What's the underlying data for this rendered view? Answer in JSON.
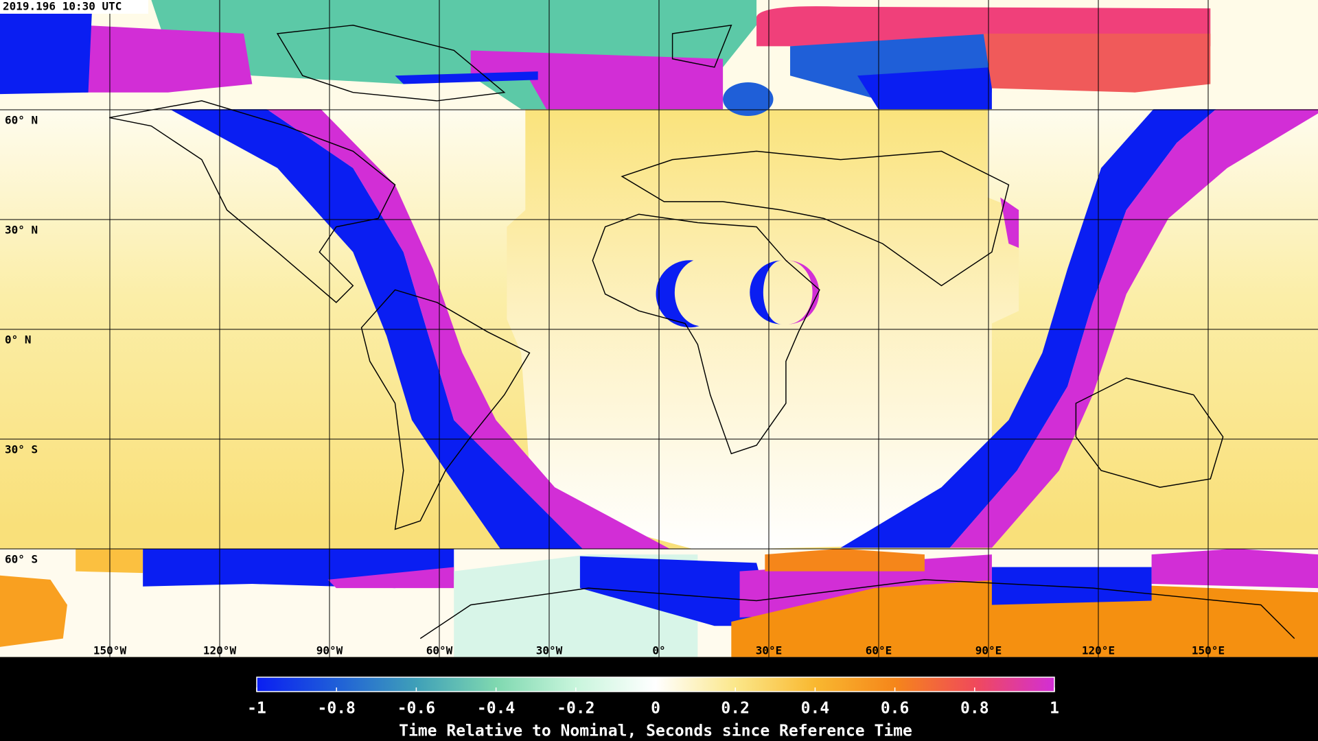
{
  "map": {
    "timestamp": "2019.196 10:30 UTC",
    "lat_labels": [
      "60° N",
      "30° N",
      "0° N",
      "30° S",
      "60° S"
    ],
    "lon_labels": [
      "150°W",
      "120°W",
      "90°W",
      "60°W",
      "30°W",
      "0°",
      "30°E",
      "60°E",
      "90°E",
      "120°E",
      "150°E"
    ]
  },
  "colorbar": {
    "label": "Time Relative to Nominal, Seconds since Reference Time",
    "lim": [
      -1,
      1
    ],
    "ticks": [
      -1,
      -0.8,
      -0.6,
      -0.4,
      -0.2,
      0,
      0.2,
      0.4,
      0.6,
      0.8,
      1
    ],
    "colors": [
      "#0a1ef2",
      "#1f5fd8",
      "#3fa0b8",
      "#7fd8b0",
      "#c8f5dc",
      "#ffffff",
      "#fbe78a",
      "#f9b830",
      "#f5861a",
      "#f04a5a",
      "#d22ed6"
    ]
  }
}
